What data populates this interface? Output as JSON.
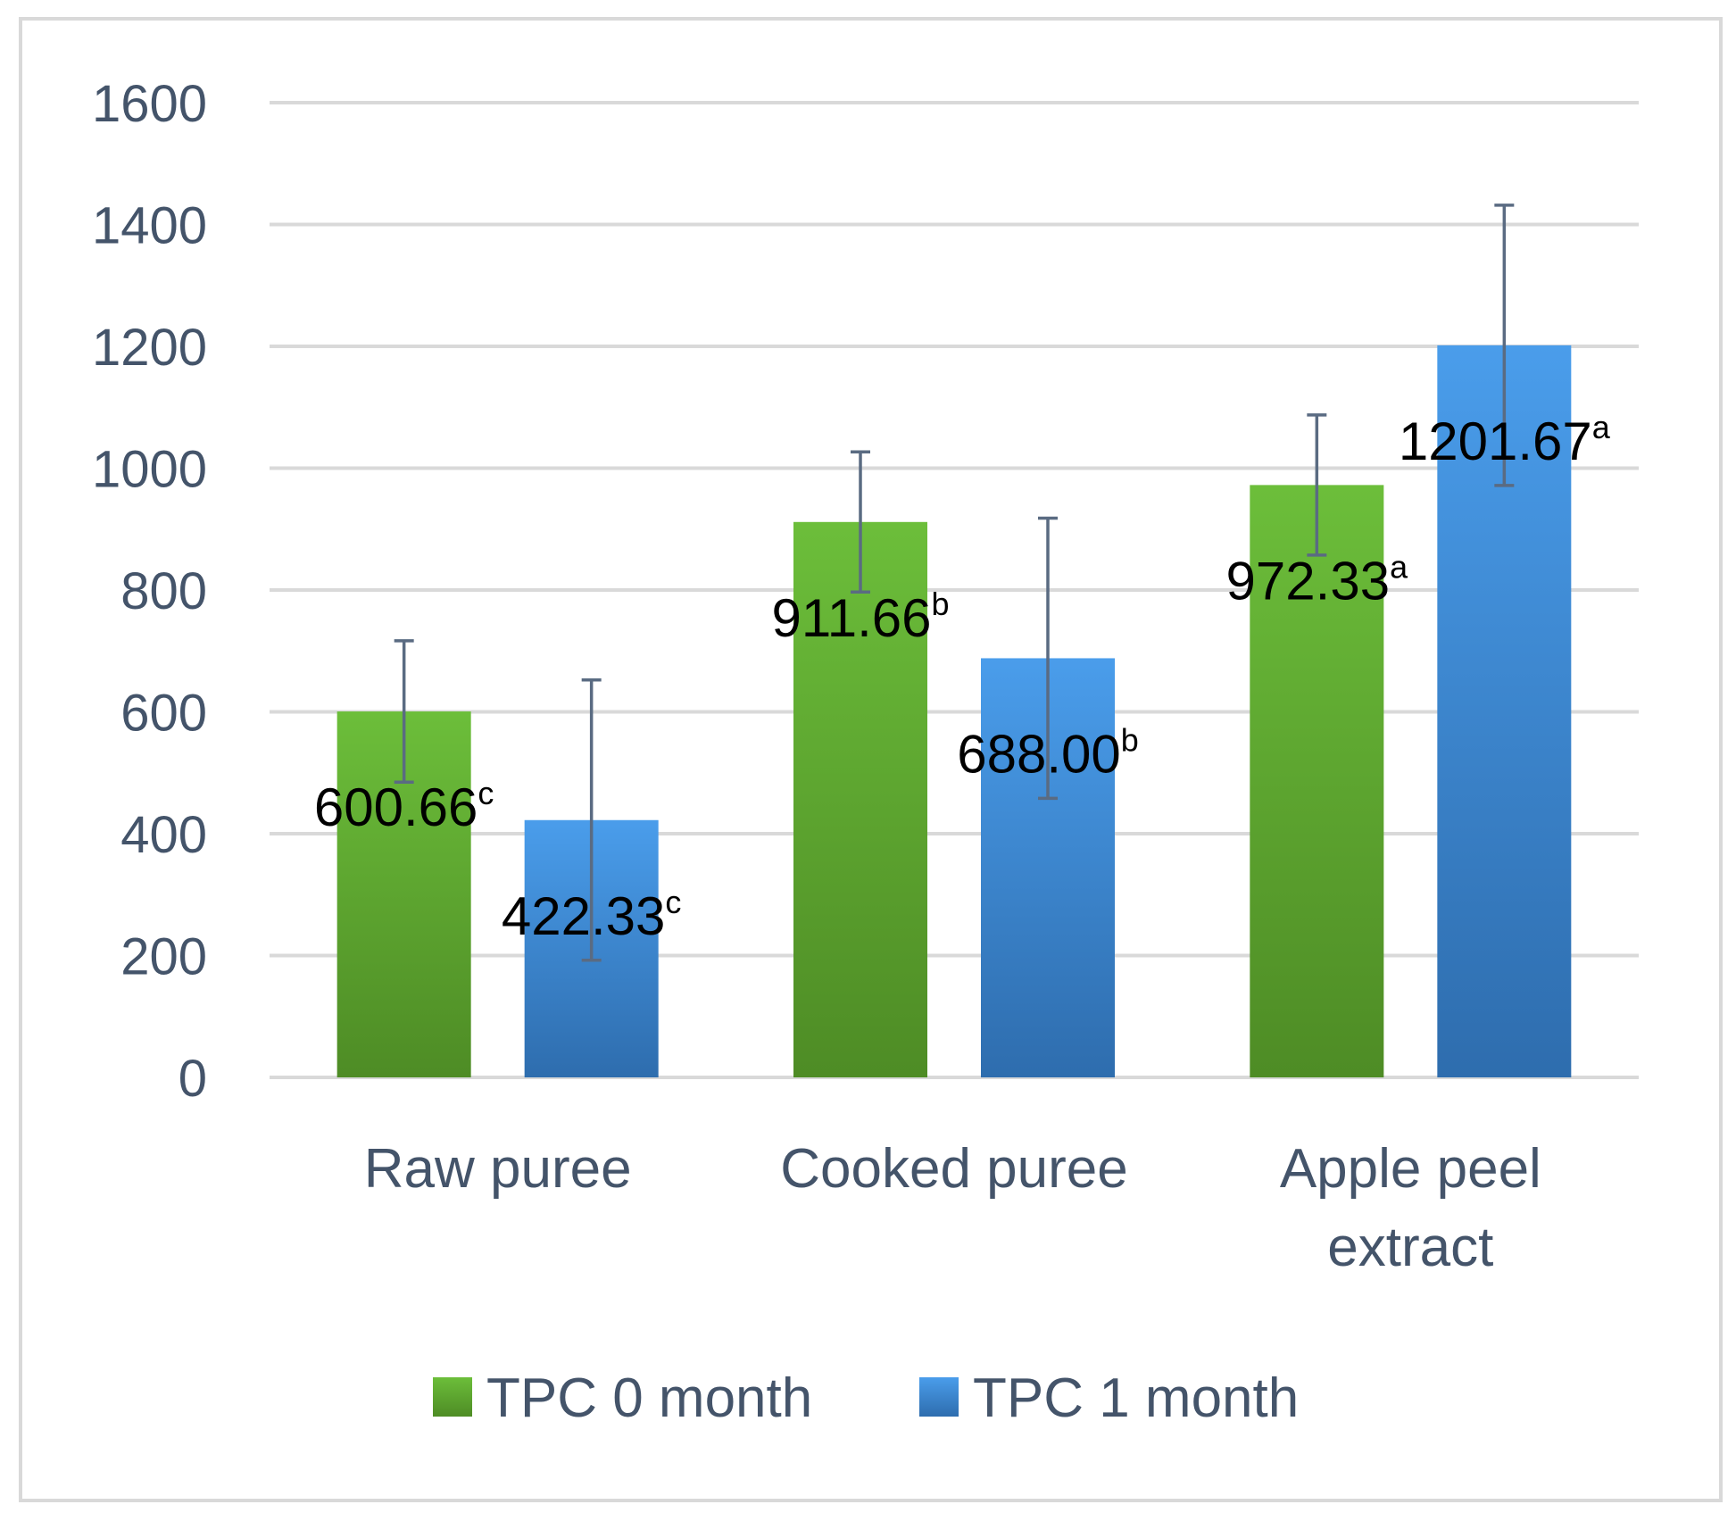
{
  "chart_data": {
    "type": "bar",
    "categories": [
      [
        "Raw puree"
      ],
      [
        "Cooked puree"
      ],
      [
        "Apple peel",
        "extract"
      ]
    ],
    "series": [
      {
        "name": "TPC 0 month",
        "values": [
          600.66,
          911.66,
          972.33
        ],
        "errors": [
          116,
          115,
          115
        ],
        "labels": [
          "600.66",
          "911.66",
          "972.33"
        ],
        "letters": [
          "c",
          "b",
          "a"
        ]
      },
      {
        "name": "TPC 1 month",
        "values": [
          422.33,
          688.0,
          1201.67
        ],
        "errors": [
          230,
          230,
          230
        ],
        "labels": [
          "422.33",
          "688.00",
          "1201.67"
        ],
        "letters": [
          "c",
          "b",
          "a"
        ]
      }
    ],
    "ylim": [
      0,
      1600
    ],
    "yticks": [
      0,
      200,
      400,
      600,
      800,
      1000,
      1200,
      1400,
      1600
    ],
    "grid": true,
    "legend_position": "bottom",
    "colors": {
      "series0_top": "#6CBE3A",
      "series0_bottom": "#4E8C25",
      "series1_top": "#4A9DEB",
      "series1_bottom": "#2E6DAE",
      "grid": "#D9D9D9",
      "error": "#5A6B82",
      "frame": "#D9D9D9",
      "text": "#44546A"
    }
  }
}
